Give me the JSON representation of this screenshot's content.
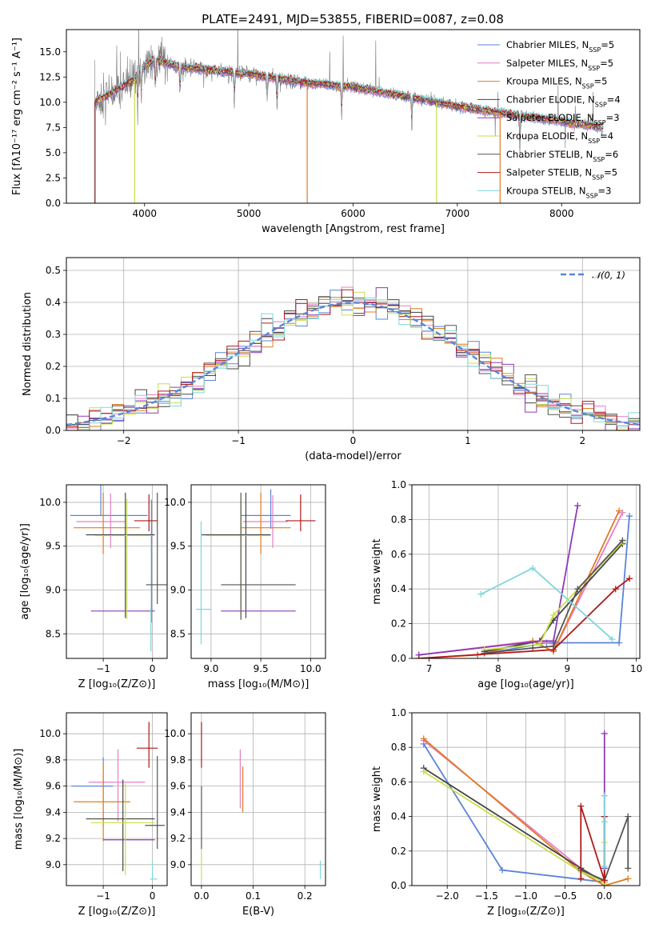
{
  "figure": {
    "title": "PLATE=2491, MJD=53855, FIBERID=0087, z=0.08"
  },
  "colors": {
    "Chabrier MILES": "#5b84d8",
    "Salpeter MILES": "#e57fc6",
    "Kroupa MILES": "#e07b22",
    "Chabrier ELODIE": "#444444",
    "Salpeter ELODIE": "#8e3bb5",
    "Kroupa ELODIE": "#c8e04a",
    "Chabrier STELIB": "#555555",
    "Salpeter STELIB": "#b01818",
    "Kroupa STELIB": "#7fd6dc",
    "gaussian": "#5b84d8"
  },
  "chart_data": [
    {
      "id": "spectrum",
      "type": "line",
      "xlabel": "wavelength [Angstrom, rest frame]",
      "ylabel": "Flux [fλ10⁻¹⁷ erg cm⁻² s⁻¹ A⁻¹]",
      "xlim": [
        3250,
        8750
      ],
      "ylim": [
        0,
        17.2
      ],
      "xticks": [
        4000,
        5000,
        6000,
        7000,
        8000
      ],
      "yticks": [
        0.0,
        2.5,
        5.0,
        7.5,
        10.0,
        12.5,
        15.0
      ],
      "legend": [
        "Chabrier MILES, N_SSP=5",
        "Salpeter MILES, N_SSP=5",
        "Kroupa MILES, N_SSP=5",
        "Chabrier ELODIE, N_SSP=4",
        "Salpeter ELODIE, N_SSP=3",
        "Kroupa ELODIE, N_SSP=4",
        "Chabrier STELIB, N_SSP=6",
        "Salpeter STELIB, N_SSP=5",
        "Kroupa STELIB, N_SSP=3"
      ],
      "legend_keys": [
        "Chabrier MILES",
        "Salpeter MILES",
        "Kroupa MILES",
        "Chabrier ELODIE",
        "Salpeter ELODIE",
        "Kroupa ELODIE",
        "Chabrier STELIB",
        "Salpeter STELIB",
        "Kroupa STELIB"
      ],
      "legend_pos": "top-right",
      "grid": false,
      "continuum": {
        "x": [
          3520,
          3700,
          3900,
          4000,
          4100,
          4300,
          4500,
          5000,
          5500,
          6000,
          6500,
          7000,
          7500,
          8000,
          8400
        ],
        "y": [
          10.0,
          11.0,
          12.3,
          13.6,
          14.2,
          13.6,
          13.3,
          12.8,
          12.0,
          11.5,
          10.6,
          9.6,
          8.8,
          8.1,
          7.5
        ]
      },
      "model_drops": [
        {
          "model": "Kroupa STELIB",
          "x": 3520
        },
        {
          "model": "Salpeter STELIB",
          "x": 3525
        },
        {
          "model": "Kroupa ELODIE",
          "x": 3905
        },
        {
          "model": "Kroupa MILES",
          "x": 5560
        },
        {
          "model": "Kroupa ELODIE",
          "x": 6800
        },
        {
          "model": "Kroupa MILES",
          "x": 7410
        }
      ]
    },
    {
      "id": "residuals",
      "type": "histogram",
      "xlabel": "(data-model)/error",
      "ylabel": "Normed distribution",
      "xlim": [
        -2.5,
        2.5
      ],
      "ylim": [
        0,
        0.54
      ],
      "xticks": [
        -2,
        -1,
        0,
        1,
        2
      ],
      "yticks": [
        0.0,
        0.1,
        0.2,
        0.3,
        0.4,
        0.5
      ],
      "grid": true,
      "legend": [
        "𝒩(0, 1)"
      ],
      "legend_pos": "top-right",
      "bin_width": 0.1,
      "bin_start": -2.5,
      "gaussian": {
        "mean": 0,
        "sigma": 1
      }
    },
    {
      "id": "age_vs_Z",
      "type": "errorbar",
      "xlabel": "Z [log₁₀(Z/Z⊙)]",
      "ylabel": "age  [log₁₀(age/yr)]",
      "xlim": [
        -1.75,
        0.3
      ],
      "ylim": [
        8.22,
        10.2
      ],
      "xticks": [
        -1,
        0
      ],
      "yticks": [
        8.5,
        9.0,
        9.5,
        10.0
      ],
      "grid": true,
      "points": [
        {
          "model": "Chabrier MILES",
          "x": -0.02,
          "y": 8.78,
          "xerr": [
            0.0,
            0.02
          ],
          "yerr": [
            0.15,
            1.25
          ]
        },
        {
          "model": "Chabrier MILES",
          "x": -1.05,
          "y": 9.85,
          "xerr": [
            0.62,
            0.95
          ],
          "yerr": [
            0.0,
            0.35
          ]
        },
        {
          "model": "Salpeter MILES",
          "x": -0.85,
          "y": 9.78,
          "xerr": [
            0.7,
            0.3
          ],
          "yerr": [
            0.3,
            0.32
          ]
        },
        {
          "model": "Kroupa MILES",
          "x": -1.0,
          "y": 9.71,
          "xerr": [
            0.6,
            0.75
          ],
          "yerr": [
            0.3,
            0.4
          ]
        },
        {
          "model": "Chabrier ELODIE",
          "x": -0.55,
          "y": 9.63,
          "xerr": [
            0.8,
            0.6
          ],
          "yerr": [
            0.95,
            0.48
          ]
        },
        {
          "model": "Salpeter ELODIE",
          "x": -0.5,
          "y": 8.76,
          "xerr": [
            0.75,
            0.55
          ],
          "yerr": [
            0.0,
            0.0
          ]
        },
        {
          "model": "Kroupa ELODIE",
          "x": -0.52,
          "y": 9.62,
          "xerr": [
            0.65,
            0.55
          ],
          "yerr": [
            0.95,
            0.42
          ]
        },
        {
          "model": "Chabrier STELIB",
          "x": 0.1,
          "y": 9.06,
          "xerr": [
            0.23,
            0.2
          ],
          "yerr": [
            0.22,
            1.05
          ]
        },
        {
          "model": "Salpeter STELIB",
          "x": -0.07,
          "y": 9.79,
          "xerr": [
            0.3,
            0.17
          ],
          "yerr": [
            0.12,
            0.3
          ]
        },
        {
          "model": "Kroupa STELIB",
          "x": -0.03,
          "y": 8.5,
          "xerr": [
            0.0,
            0.0
          ],
          "yerr": [
            0.2,
            0.3
          ]
        }
      ]
    },
    {
      "id": "age_vs_mass",
      "type": "errorbar",
      "xlabel": "mass [log₁₀(M/M⊙)]",
      "ylabel": "",
      "xlim": [
        8.8,
        10.15
      ],
      "ylim": [
        8.22,
        10.2
      ],
      "xticks": [
        9.0,
        9.5,
        10.0
      ],
      "yticks": [
        8.5,
        9.0,
        9.5,
        10.0
      ],
      "grid": true,
      "points": [
        {
          "model": "Chabrier MILES",
          "x": 9.6,
          "y": 9.85,
          "xerr": [
            0.3,
            0.2
          ],
          "yerr": [
            0.15,
            0.3
          ]
        },
        {
          "model": "Salpeter MILES",
          "x": 9.62,
          "y": 9.78,
          "xerr": [
            0.3,
            0.15
          ],
          "yerr": [
            0.3,
            0.3
          ]
        },
        {
          "model": "Kroupa MILES",
          "x": 9.5,
          "y": 9.71,
          "xerr": [
            0.2,
            0.3
          ],
          "yerr": [
            0.3,
            0.4
          ]
        },
        {
          "model": "Chabrier ELODIE",
          "x": 9.35,
          "y": 9.63,
          "xerr": [
            0.45,
            0.25
          ],
          "yerr": [
            0.95,
            0.48
          ]
        },
        {
          "model": "Salpeter ELODIE",
          "x": 9.4,
          "y": 8.76,
          "xerr": [
            0.3,
            0.45
          ],
          "yerr": [
            0.0,
            0.0
          ]
        },
        {
          "model": "Kroupa ELODIE",
          "x": 9.3,
          "y": 9.62,
          "xerr": [
            0.35,
            0.3
          ],
          "yerr": [
            0.95,
            0.42
          ]
        },
        {
          "model": "Chabrier STELIB",
          "x": 9.3,
          "y": 9.06,
          "xerr": [
            0.2,
            0.55
          ],
          "yerr": [
            0.4,
            1.05
          ]
        },
        {
          "model": "Salpeter STELIB",
          "x": 9.9,
          "y": 9.79,
          "xerr": [
            0.15,
            0.15
          ],
          "yerr": [
            0.12,
            0.3
          ]
        },
        {
          "model": "Kroupa STELIB",
          "x": 8.9,
          "y": 8.78,
          "xerr": [
            0.05,
            0.1
          ],
          "yerr": [
            0.4,
            1.0
          ]
        }
      ]
    },
    {
      "id": "weight_vs_age",
      "type": "line",
      "xlabel": "age  [log₁₀(age/yr)]",
      "ylabel": "mass weight",
      "xlim": [
        6.75,
        10.05
      ],
      "ylim": [
        0,
        1.0
      ],
      "xticks": [
        7,
        8,
        9,
        10
      ],
      "yticks": [
        0.0,
        0.2,
        0.4,
        0.6,
        0.8,
        1.0
      ],
      "grid": true,
      "series": [
        {
          "model": "Chabrier MILES",
          "x": [
            7.7,
            8.7,
            9.75,
            9.9
          ],
          "y": [
            0.02,
            0.09,
            0.09,
            0.82
          ]
        },
        {
          "model": "Salpeter MILES",
          "x": [
            6.85,
            8.5,
            8.85,
            9.8
          ],
          "y": [
            0.02,
            0.1,
            0.08,
            0.84
          ]
        },
        {
          "model": "Kroupa MILES",
          "x": [
            6.85,
            7.7,
            8.5,
            8.8,
            9.75
          ],
          "y": [
            0.0,
            0.02,
            0.1,
            0.04,
            0.85
          ]
        },
        {
          "model": "Chabrier ELODIE",
          "x": [
            7.8,
            8.6,
            8.8,
            9.8
          ],
          "y": [
            0.04,
            0.1,
            0.22,
            0.66
          ]
        },
        {
          "model": "Salpeter ELODIE",
          "x": [
            6.85,
            8.6,
            8.8,
            9.15
          ],
          "y": [
            0.02,
            0.1,
            0.1,
            0.88
          ]
        },
        {
          "model": "Kroupa ELODIE",
          "x": [
            7.8,
            8.6,
            8.8,
            9.8
          ],
          "y": [
            0.05,
            0.08,
            0.25,
            0.67
          ]
        },
        {
          "model": "Chabrier STELIB",
          "x": [
            7.8,
            8.5,
            8.8,
            9.15,
            9.8
          ],
          "y": [
            0.03,
            0.06,
            0.07,
            0.4,
            0.68
          ]
        },
        {
          "model": "Salpeter STELIB",
          "x": [
            6.85,
            8.8,
            9.7,
            9.9
          ],
          "y": [
            0.0,
            0.05,
            0.4,
            0.46
          ]
        },
        {
          "model": "Kroupa STELIB",
          "x": [
            7.75,
            8.5,
            9.65
          ],
          "y": [
            0.37,
            0.52,
            0.11
          ]
        }
      ]
    },
    {
      "id": "mass_vs_Z",
      "type": "errorbar",
      "xlabel": "Z [log₁₀(Z/Z⊙)]",
      "ylabel": "mass [log₁₀(M/M⊙)]",
      "xlim": [
        -1.75,
        0.3
      ],
      "ylim": [
        8.84,
        10.16
      ],
      "xticks": [
        -1,
        0
      ],
      "yticks": [
        9.0,
        9.2,
        9.4,
        9.6,
        9.8,
        10.0
      ],
      "grid": true,
      "points": [
        {
          "model": "Chabrier MILES",
          "x": -1.0,
          "y": 9.6,
          "xerr": [
            0.65,
            0.2
          ],
          "yerr": [
            0.3,
            0.22
          ]
        },
        {
          "model": "Salpeter MILES",
          "x": -0.7,
          "y": 9.63,
          "xerr": [
            0.6,
            0.55
          ],
          "yerr": [
            0.3,
            0.25
          ]
        },
        {
          "model": "Kroupa MILES",
          "x": -1.0,
          "y": 9.48,
          "xerr": [
            0.6,
            0.55
          ],
          "yerr": [
            0.3,
            0.3
          ]
        },
        {
          "model": "Chabrier ELODIE",
          "x": -0.6,
          "y": 9.35,
          "xerr": [
            0.75,
            0.65
          ],
          "yerr": [
            0.4,
            0.3
          ]
        },
        {
          "model": "Salpeter ELODIE",
          "x": -0.5,
          "y": 9.19,
          "xerr": [
            0.5,
            0.55
          ],
          "yerr": [
            0.0,
            0.0
          ]
        },
        {
          "model": "Kroupa ELODIE",
          "x": -0.55,
          "y": 9.32,
          "xerr": [
            0.7,
            0.6
          ],
          "yerr": [
            0.4,
            0.3
          ]
        },
        {
          "model": "Chabrier STELIB",
          "x": 0.1,
          "y": 9.3,
          "xerr": [
            0.25,
            0.15
          ],
          "yerr": [
            0.18,
            0.53
          ]
        },
        {
          "model": "Salpeter STELIB",
          "x": -0.07,
          "y": 9.89,
          "xerr": [
            0.25,
            0.18
          ],
          "yerr": [
            0.15,
            0.2
          ]
        },
        {
          "model": "Kroupa STELIB",
          "x": 0.0,
          "y": 8.89,
          "xerr": [
            0.05,
            0.1
          ],
          "yerr": [
            0.0,
            0.14
          ]
        }
      ]
    },
    {
      "id": "mass_vs_ebv",
      "type": "errorbar",
      "xlabel": "E(B-V)",
      "ylabel": "",
      "xlim": [
        -0.02,
        0.24
      ],
      "ylim": [
        8.84,
        10.16
      ],
      "xticks": [
        0.0,
        0.1,
        0.2
      ],
      "yticks": [
        9.0,
        9.2,
        9.4,
        9.6,
        9.8,
        10.0
      ],
      "grid": true,
      "points": [
        {
          "model": "Salpeter STELIB",
          "x": 0.0,
          "y": 9.89,
          "xerr": [
            0,
            0
          ],
          "yerr": [
            0.15,
            0.2
          ]
        },
        {
          "model": "Chabrier STELIB",
          "x": 0.0,
          "y": 9.3,
          "xerr": [
            0,
            0
          ],
          "yerr": [
            0.18,
            0.3
          ]
        },
        {
          "model": "Kroupa ELODIE",
          "x": 0.0,
          "y": 9.0,
          "xerr": [
            0,
            0
          ],
          "yerr": [
            0.1,
            0.1
          ]
        },
        {
          "model": "Salpeter MILES",
          "x": 0.075,
          "y": 9.63,
          "xerr": [
            0,
            0
          ],
          "yerr": [
            0.2,
            0.25
          ]
        },
        {
          "model": "Kroupa MILES",
          "x": 0.08,
          "y": 9.55,
          "xerr": [
            0,
            0
          ],
          "yerr": [
            0.15,
            0.2
          ]
        },
        {
          "model": "Kroupa STELIB",
          "x": 0.23,
          "y": 8.96,
          "xerr": [
            0,
            0
          ],
          "yerr": [
            0.07,
            0.07
          ]
        }
      ]
    },
    {
      "id": "weight_vs_Z",
      "type": "line",
      "xlabel": "Z [log₁₀(Z/Z⊙)]",
      "ylabel": "mass weight",
      "xlim": [
        -2.45,
        0.45
      ],
      "ylim": [
        0,
        1.0
      ],
      "xticks": [
        -2.0,
        -1.5,
        -1.0,
        -0.5,
        0.0
      ],
      "yticks": [
        0.0,
        0.2,
        0.4,
        0.6,
        0.8,
        1.0
      ],
      "grid": true,
      "series": [
        {
          "model": "Chabrier MILES",
          "x": [
            -2.3,
            -1.3,
            0.0
          ],
          "y": [
            0.82,
            0.09,
            0.02
          ]
        },
        {
          "model": "Salpeter MILES",
          "x": [
            -2.3,
            -0.3,
            0.0
          ],
          "y": [
            0.84,
            0.1,
            0.02
          ]
        },
        {
          "model": "Kroupa MILES",
          "x": [
            -2.3,
            -0.3,
            0.0,
            0.3
          ],
          "y": [
            0.85,
            0.08,
            0.0,
            0.04
          ]
        },
        {
          "model": "Chabrier ELODIE",
          "x": [
            -2.3,
            -0.3,
            0.0,
            0.0
          ],
          "y": [
            0.68,
            0.1,
            0.02,
            0.4
          ]
        },
        {
          "model": "Salpeter ELODIE",
          "x": [
            0.0,
            0.0,
            0.0
          ],
          "y": [
            0.88,
            0.1,
            0.02
          ]
        },
        {
          "model": "Kroupa ELODIE",
          "x": [
            -2.3,
            -0.3,
            0.0,
            0.0
          ],
          "y": [
            0.66,
            0.08,
            0.02,
            0.25
          ]
        },
        {
          "model": "Chabrier STELIB",
          "x": [
            -0.3,
            0.0,
            0.3,
            0.3
          ],
          "y": [
            0.09,
            0.03,
            0.4,
            0.1
          ]
        },
        {
          "model": "Salpeter STELIB",
          "x": [
            -0.3,
            -0.3,
            0.0,
            0.0
          ],
          "y": [
            0.04,
            0.46,
            0.03,
            0.4
          ]
        },
        {
          "model": "Kroupa STELIB",
          "x": [
            0.0,
            0.0,
            0.0
          ],
          "y": [
            0.52,
            0.37,
            0.11
          ]
        }
      ]
    }
  ]
}
